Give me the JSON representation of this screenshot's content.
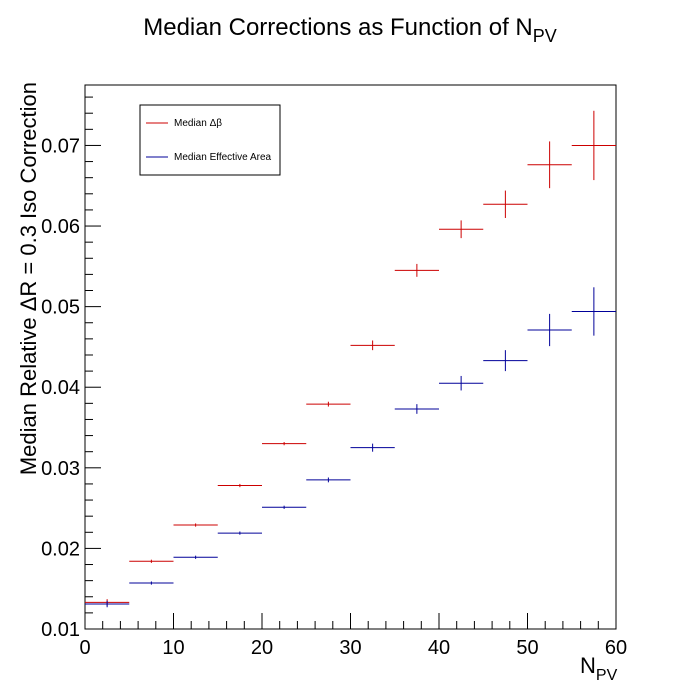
{
  "chart_data": {
    "type": "scatter",
    "title": "Median Corrections as Function of N",
    "title_sub": "PV",
    "xlabel": "N",
    "xlabel_sub": "PV",
    "ylabel": "Median Relative ΔR = 0.3 Iso Correction",
    "xlim": [
      0,
      60
    ],
    "ylim": [
      0.01,
      0.0775
    ],
    "x_ticks": [
      0,
      10,
      20,
      30,
      40,
      50,
      60
    ],
    "y_ticks": [
      0.01,
      0.02,
      0.03,
      0.04,
      0.05,
      0.06,
      0.07
    ],
    "x_tick_labels": [
      "0",
      "10",
      "20",
      "30",
      "40",
      "50",
      "60"
    ],
    "y_tick_labels": [
      "0.01",
      "0.02",
      "0.03",
      "0.04",
      "0.05",
      "0.06",
      "0.07"
    ],
    "legend_position": "top-left",
    "bin_half_width": 2.5,
    "series": [
      {
        "name": "Median Δβ",
        "color": "#cc0000",
        "x": [
          2.5,
          7.5,
          12.5,
          17.5,
          22.5,
          27.5,
          32.5,
          37.5,
          42.5,
          47.5,
          52.5,
          57.5
        ],
        "y": [
          0.0133,
          0.0184,
          0.0229,
          0.0278,
          0.033,
          0.0379,
          0.0452,
          0.0545,
          0.0596,
          0.0627,
          0.0676,
          0.07
        ],
        "yerr": [
          0.0004,
          0.0002,
          0.0002,
          0.0002,
          0.0002,
          0.0003,
          0.0006,
          0.0008,
          0.0011,
          0.0017,
          0.0029,
          0.0043
        ]
      },
      {
        "name": "Median Effective Area",
        "color": "#000099",
        "x": [
          2.5,
          7.5,
          12.5,
          17.5,
          22.5,
          27.5,
          32.5,
          37.5,
          42.5,
          47.5,
          52.5,
          57.5
        ],
        "y": [
          0.0131,
          0.0157,
          0.0189,
          0.0219,
          0.0251,
          0.0285,
          0.0325,
          0.0373,
          0.0405,
          0.0433,
          0.0471,
          0.0494
        ],
        "yerr": [
          0.0004,
          0.0002,
          0.0002,
          0.0002,
          0.0002,
          0.0003,
          0.0005,
          0.0006,
          0.0009,
          0.0013,
          0.002,
          0.003
        ]
      }
    ]
  }
}
